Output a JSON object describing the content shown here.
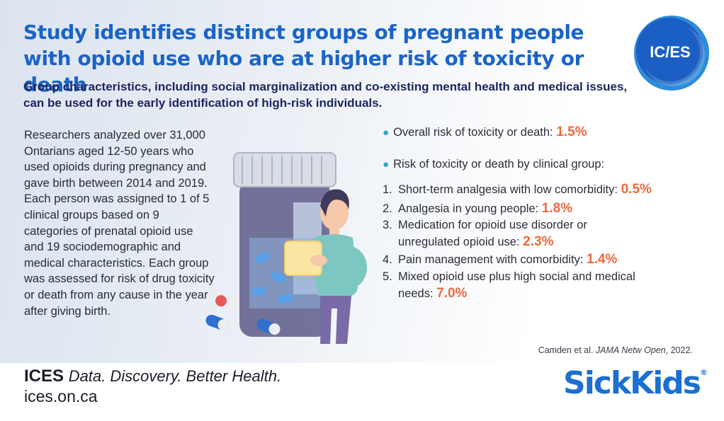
{
  "header": {
    "title": "Study identifies distinct groups of pregnant people with opioid use who are at higher risk of toxicity or death",
    "subtitle": "Group characteristics, including social marginalization and co-existing mental health and medical issues, can be used for the early identification of high-risk individuals.",
    "logo_text": "IC/ES"
  },
  "body": {
    "text": "Researchers analyzed over 31,000 Ontarians aged 12-50 years who used opioids during pregnancy and gave birth between 2014 and 2019. Each person was assigned to 1 of 5 clinical groups based on 9 categories of prenatal opioid use and 19 sociodemographic and medical characteristics. Each group was assessed for risk of drug toxicity or death from any cause in the year after giving birth."
  },
  "stats": {
    "overall_label": "Overall risk of toxicity or death:",
    "overall_value": "1.5%",
    "by_group_label": "Risk of toxicity or death by clinical group:",
    "groups": [
      {
        "num": "1.",
        "label": "Short-term analgesia with low comorbidity:",
        "value": "0.5%"
      },
      {
        "num": "2.",
        "label": "Analgesia in young people:",
        "value": "1.8%"
      },
      {
        "num": "3.",
        "label": "Medication for opioid use disorder or",
        "label2": "unregulated opioid use:",
        "value": "2.3%"
      },
      {
        "num": "4.",
        "label": "Pain management with comorbidity:",
        "value": "1.4%"
      },
      {
        "num": "5.",
        "label": "Mixed opioid use plus high social and medical",
        "label2": "needs:",
        "value": "7.0%"
      }
    ]
  },
  "citation": {
    "authors": "Camden et al.",
    "journal": "JAMA Netw Open",
    "year": ", 2022."
  },
  "footer": {
    "brand": "ICES",
    "tagline": "Data. Discovery. Better Health.",
    "url": "ices.on.ca",
    "partner": "SickKids",
    "partner_mark": "®"
  },
  "colors": {
    "title": "#1a64c8",
    "subtitle": "#1c2660",
    "highlight": "#f0683f",
    "bullet": "#2aa6d6",
    "logo_bg": "#1b5fc4",
    "partner": "#1b6fd0"
  },
  "illustration": "pregnant-woman-with-pill-bottle-illustration"
}
